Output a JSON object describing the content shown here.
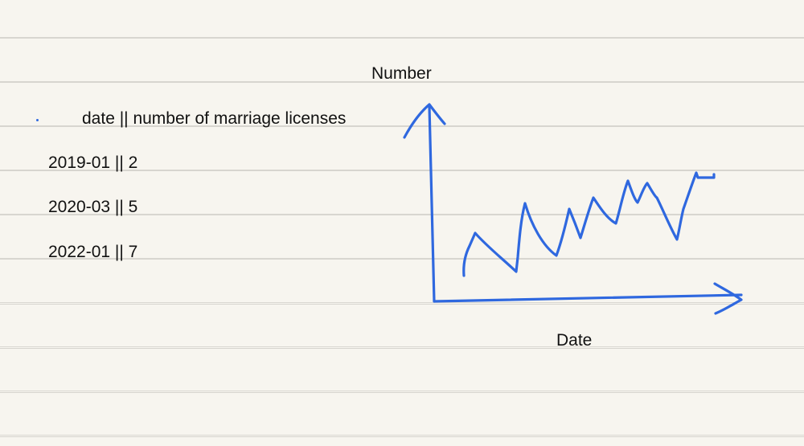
{
  "notes": {
    "header": "date || number of marriage licenses",
    "rows": [
      "2019-01 || 2",
      "2020-03 || 5",
      "2022-01 || 7"
    ]
  },
  "sketch": {
    "y_axis_label": "Number",
    "x_axis_label": "Date",
    "ink_color": "#2f68df"
  }
}
